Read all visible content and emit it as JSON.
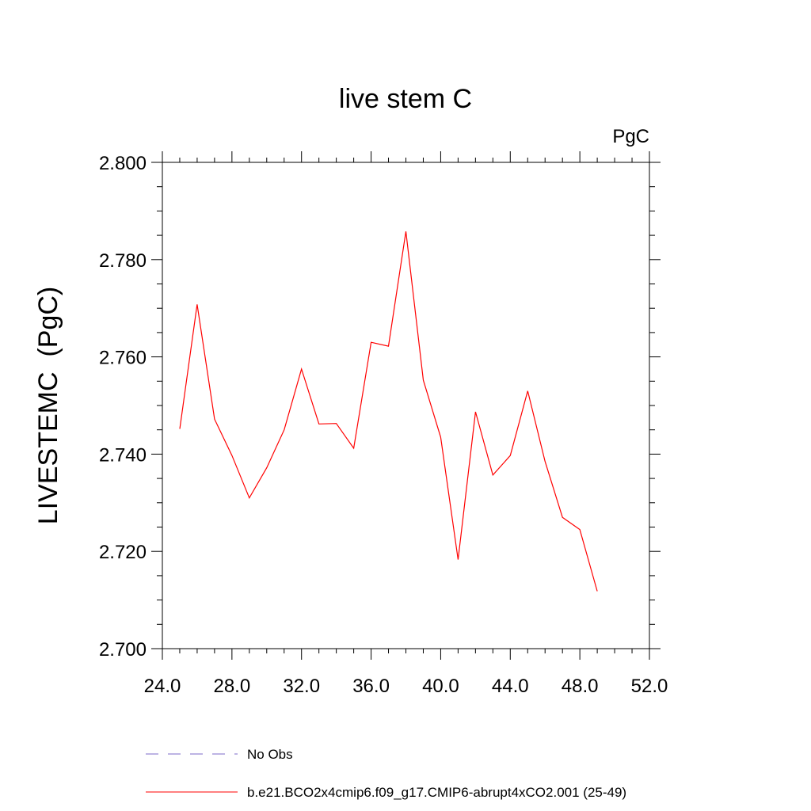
{
  "chart_data": {
    "type": "line",
    "title": "live stem C",
    "units_label": "PgC",
    "ylabel": "LIVESTEMC  (PgC)",
    "xlabel": "",
    "xlim": [
      24.0,
      52.0
    ],
    "ylim": [
      2.7,
      2.8
    ],
    "x_ticks": [
      24,
      28,
      32,
      36,
      40,
      44,
      48,
      52
    ],
    "x_tick_labels": [
      "24.0",
      "28.0",
      "32.0",
      "36.0",
      "40.0",
      "44.0",
      "48.0",
      "52.0"
    ],
    "y_ticks": [
      2.7,
      2.72,
      2.74,
      2.76,
      2.78,
      2.8
    ],
    "y_tick_labels": [
      "2.700",
      "2.720",
      "2.740",
      "2.760",
      "2.780",
      "2.800"
    ],
    "grid": false,
    "legend_placement": "bottom",
    "series": [
      {
        "name": "b.e21.BCO2x4cmip6.f09_g17.CMIP6-abrupt4xCO2.001 (25-49)",
        "color": "#ff0000",
        "x": [
          25,
          26,
          27,
          28,
          29,
          30,
          31,
          32,
          33,
          34,
          35,
          36,
          37,
          38,
          39,
          40,
          41,
          42,
          43,
          44,
          45,
          46,
          47,
          48,
          49
        ],
        "values": [
          2.7452,
          2.7708,
          2.7472,
          2.7397,
          2.731,
          2.7372,
          2.745,
          2.7575,
          2.7462,
          2.7463,
          2.7412,
          2.763,
          2.7622,
          2.7858,
          2.7552,
          2.7435,
          2.7183,
          2.7487,
          2.7357,
          2.7397,
          2.753,
          2.7385,
          2.727,
          2.7245,
          2.7118
        ]
      }
    ],
    "legend": [
      {
        "label": "No Obs",
        "color": "#7b68c8",
        "style": "dashed"
      },
      {
        "label": "b.e21.BCO2x4cmip6.f09_g17.CMIP6-abrupt4xCO2.001 (25-49)",
        "color": "#ff0000",
        "style": "solid"
      }
    ]
  }
}
